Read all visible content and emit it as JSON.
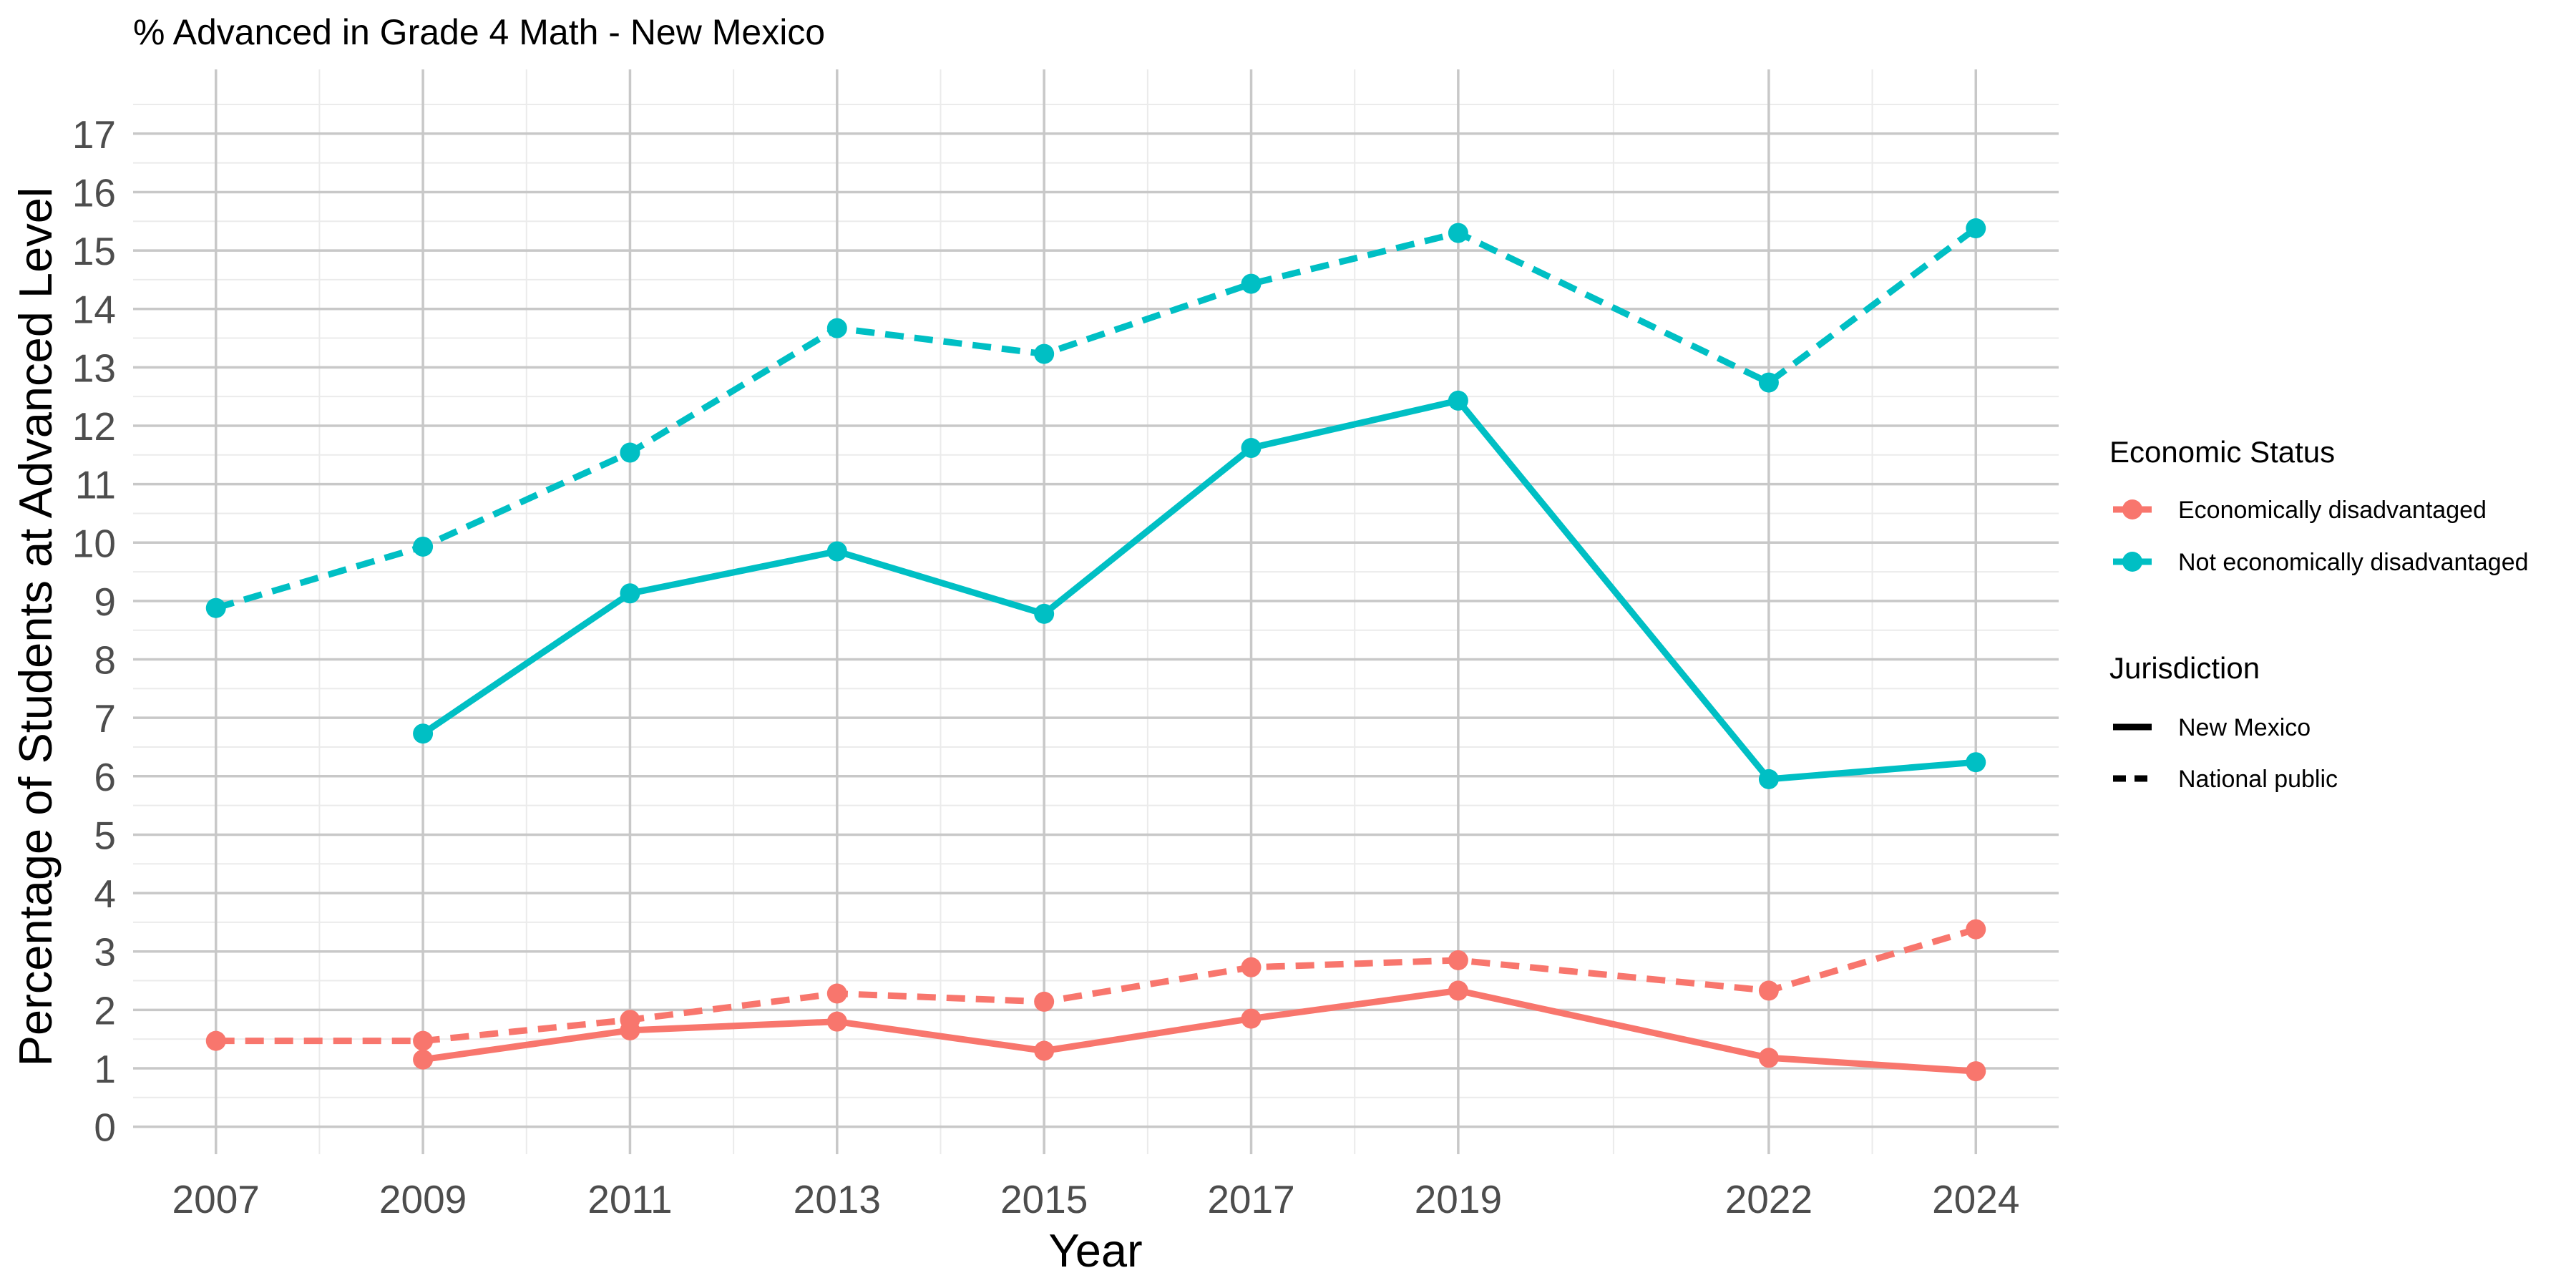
{
  "chart_data": {
    "type": "line",
    "title": "% Advanced in Grade 4 Math - New Mexico",
    "xlabel": "Year",
    "ylabel": "Percentage of Students at Advanced Level",
    "x_ticks": [
      2007,
      2009,
      2011,
      2013,
      2015,
      2017,
      2019,
      2022,
      2024
    ],
    "xlim": [
      2006.2,
      2024.8
    ],
    "y_ticks": [
      0,
      1,
      2,
      3,
      4,
      5,
      6,
      7,
      8,
      9,
      10,
      11,
      12,
      13,
      14,
      15,
      16,
      17
    ],
    "ylim": [
      -0.47,
      18.1
    ],
    "grid": true,
    "legend_position": "right",
    "legends": {
      "color": {
        "title": "Economic Status",
        "items": [
          {
            "label": "Economically disadvantaged",
            "color": "#F8766D"
          },
          {
            "label": "Not economically disadvantaged",
            "color": "#00BFC4"
          }
        ]
      },
      "linetype": {
        "title": "Jurisdiction",
        "items": [
          {
            "label": "New Mexico",
            "style": "solid"
          },
          {
            "label": "National public",
            "style": "dashed"
          }
        ]
      }
    },
    "series": [
      {
        "status": "Economically disadvantaged",
        "jurisdiction": "New Mexico",
        "color": "#F8766D",
        "style": "solid",
        "x": [
          2009,
          2011,
          2013,
          2015,
          2017,
          2019,
          2022,
          2024
        ],
        "y": [
          1.15,
          1.65,
          1.8,
          1.3,
          1.85,
          2.33,
          1.18,
          0.95
        ]
      },
      {
        "status": "Economically disadvantaged",
        "jurisdiction": "National public",
        "color": "#F8766D",
        "style": "dashed",
        "x": [
          2007,
          2009,
          2011,
          2013,
          2015,
          2017,
          2019,
          2022,
          2024
        ],
        "y": [
          1.47,
          1.47,
          1.83,
          2.28,
          2.14,
          2.73,
          2.85,
          2.33,
          3.38
        ]
      },
      {
        "status": "Not economically disadvantaged",
        "jurisdiction": "New Mexico",
        "color": "#00BFC4",
        "style": "solid",
        "x": [
          2009,
          2011,
          2013,
          2015,
          2017,
          2019,
          2022,
          2024
        ],
        "y": [
          6.73,
          9.13,
          9.85,
          8.78,
          11.62,
          12.43,
          5.95,
          6.24
        ]
      },
      {
        "status": "Not economically disadvantaged",
        "jurisdiction": "National public",
        "color": "#00BFC4",
        "style": "dashed",
        "x": [
          2007,
          2009,
          2011,
          2013,
          2015,
          2017,
          2019,
          2022,
          2024
        ],
        "y": [
          8.88,
          9.93,
          11.54,
          13.67,
          13.23,
          14.43,
          15.3,
          12.74,
          15.38
        ]
      }
    ]
  }
}
